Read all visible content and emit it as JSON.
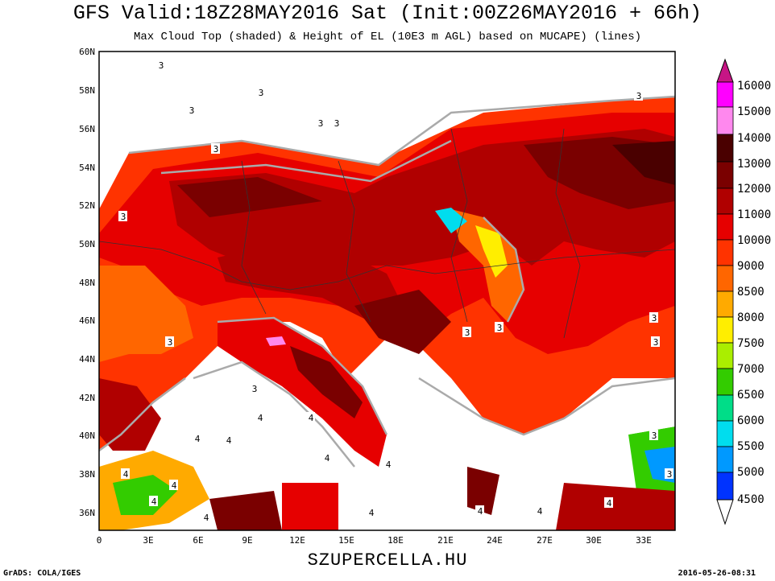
{
  "header": {
    "title": "GFS Valid:18Z28MAY2016 Sat (Init:00Z26MAY2016 + 66h)",
    "subtitle": "Max Cloud Top (shaded) & Height of EL (10E3 m AGL) based on MUCAPE) (lines)"
  },
  "footer": {
    "site": "SZUPERCELLA.HU",
    "credit": "GrADS: COLA/IGES",
    "timestamp": "2016-05-26-08:31"
  },
  "map": {
    "lat_labels": [
      "60N",
      "58N",
      "56N",
      "54N",
      "52N",
      "50N",
      "48N",
      "46N",
      "44N",
      "42N",
      "40N",
      "38N",
      "36N"
    ],
    "lon_labels": [
      "0",
      "3E",
      "6E",
      "9E",
      "12E",
      "15E",
      "18E",
      "21E",
      "24E",
      "27E",
      "30E",
      "33E"
    ],
    "contour_labels": [
      "3",
      "3",
      "3",
      "3",
      "3",
      "3",
      "3",
      "3",
      "3",
      "3",
      "3",
      "3",
      "3",
      "3",
      "3",
      "3",
      "4",
      "4",
      "4",
      "4",
      "4",
      "4",
      "4",
      "4",
      "4",
      "4",
      "4",
      "4",
      "4",
      "4"
    ]
  },
  "legend": {
    "levels": [
      "16000",
      "15000",
      "14000",
      "13000",
      "12000",
      "11000",
      "10000",
      "9000",
      "8500",
      "8000",
      "7500",
      "7000",
      "6500",
      "6000",
      "5500",
      "5000",
      "4500"
    ],
    "colors": {
      "16000": "#c71585",
      "15000": "#ff00ff",
      "14000": "#ff88ee",
      "13000": "#4a0000",
      "12000": "#7a0000",
      "11000": "#b00000",
      "10000": "#e60000",
      "9000": "#ff3300",
      "8500": "#ff6600",
      "8000": "#ffaa00",
      "7500": "#ffee00",
      "7000": "#aaee00",
      "6500": "#33cc00",
      "6000": "#00dd88",
      "5500": "#00ddee",
      "5000": "#0099ff",
      "4500": "#0033ff",
      "below": "#ffffff"
    }
  }
}
